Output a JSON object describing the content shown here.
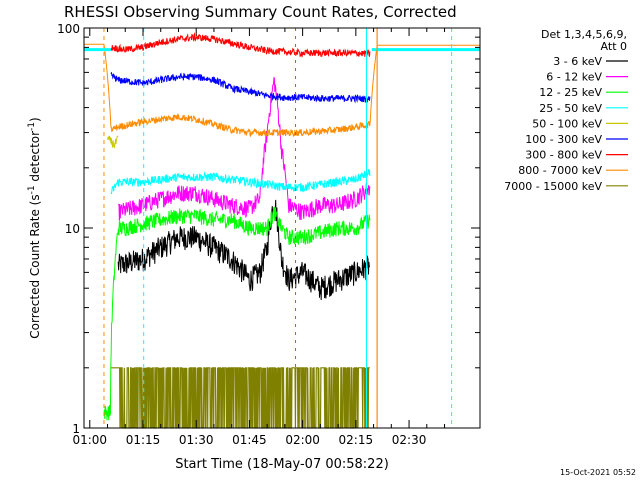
{
  "chart_data": {
    "type": "line",
    "title": "RHESSI Observing Summary Count Rates, Corrected",
    "xlabel": "Start Time (18-May-07 00:58:22)",
    "ylabel_main": "Corrected Count Rate (s",
    "ylabel_sup1": "-1",
    "ylabel_mid": " detector",
    "ylabel_sup2": "-1",
    "ylabel_end": ")",
    "yscale": "log",
    "ylim": [
      1,
      100
    ],
    "xlim_minutes": [
      58.37,
      170
    ],
    "x_ticks": [
      "01:00",
      "01:15",
      "01:30",
      "01:45",
      "02:00",
      "02:15",
      "02:30"
    ],
    "x_tick_minutes": [
      60,
      75,
      90,
      105,
      120,
      135,
      150
    ],
    "y_ticks": [
      "1",
      "10",
      "100"
    ],
    "y_tick_values": [
      1,
      10,
      100
    ],
    "legend": {
      "header1": "Det 1,3,4,5,6,9,",
      "header2": "Att 0",
      "position": "top-right"
    },
    "timestamp": "15-Oct-2021 05:52",
    "data_window_minutes": [
      68,
      139
    ],
    "flare_peak_minutes": 112,
    "series": [
      {
        "name": "3 - 6 keV",
        "color": "#000000",
        "x": [
          68,
          75,
          80,
          85,
          90,
          95,
          100,
          105,
          108,
          110,
          112,
          114,
          116,
          120,
          125,
          130,
          135,
          139
        ],
        "values": [
          6.5,
          7,
          8,
          9,
          9,
          8,
          7,
          5.5,
          6,
          8,
          14,
          7,
          5.5,
          6,
          5,
          5.5,
          6,
          6.5
        ]
      },
      {
        "name": "6 - 12 keV",
        "color": "#ff00ff",
        "x": [
          68,
          75,
          80,
          85,
          90,
          95,
          100,
          105,
          108,
          110,
          112,
          114,
          116,
          120,
          125,
          130,
          135,
          139
        ],
        "values": [
          12,
          13,
          14,
          15,
          15,
          14,
          13,
          12.5,
          14,
          30,
          55,
          25,
          13,
          12,
          13,
          13,
          14,
          16
        ]
      },
      {
        "name": "12 - 25 keV",
        "color": "#00ff00",
        "x": [
          64,
          65.8,
          66,
          68,
          70,
          75,
          80,
          85,
          90,
          95,
          100,
          105,
          110,
          112,
          114,
          116,
          120,
          125,
          130,
          135,
          139
        ],
        "values": [
          1.2,
          1.2,
          2.5,
          10,
          10,
          10.5,
          11,
          11.5,
          11.5,
          11,
          11,
          10,
          10,
          12,
          10,
          9,
          9,
          9.5,
          10,
          10,
          11
        ]
      },
      {
        "name": "25 - 50 keV",
        "color": "#00ffff",
        "x": [
          66,
          68,
          70,
          75,
          80,
          85,
          90,
          95,
          100,
          105,
          110,
          115,
          120,
          125,
          130,
          135,
          139
        ],
        "values": [
          15,
          17,
          17,
          17,
          17.5,
          18,
          18,
          18,
          17.5,
          17,
          16.5,
          16,
          16,
          16.5,
          17,
          17.5,
          19
        ]
      },
      {
        "name": "50 - 100 keV",
        "color": "#c8c800",
        "x": [
          65,
          66,
          67,
          68
        ],
        "values": [
          28,
          27,
          26,
          28
        ]
      },
      {
        "name": "100 - 300 keV",
        "color": "#0000ff",
        "x": [
          66,
          68,
          75,
          80,
          85,
          90,
          95,
          100,
          105,
          110,
          115,
          120,
          125,
          130,
          135,
          139
        ],
        "values": [
          58,
          55,
          53,
          55,
          57,
          57,
          55,
          50,
          48,
          46,
          45,
          45,
          44.5,
          44.5,
          44.5,
          44
        ]
      },
      {
        "name": "300 - 800 keV",
        "color": "#ff0000",
        "x": [
          66,
          70,
          75,
          80,
          85,
          90,
          95,
          100,
          105,
          110,
          115,
          120,
          125,
          130,
          135,
          139
        ],
        "values": [
          80,
          78,
          80,
          85,
          88,
          90,
          88,
          84,
          80,
          77,
          76,
          75,
          75,
          75,
          75,
          74
        ]
      },
      {
        "name": "800 - 7000 keV",
        "color": "#ff8c00",
        "x": [
          58.4,
          62,
          64,
          66,
          68,
          75,
          80,
          85,
          90,
          95,
          100,
          105,
          110,
          115,
          120,
          125,
          130,
          135,
          139,
          141,
          170
        ],
        "values": [
          83,
          83,
          83,
          31,
          32,
          34,
          35,
          36,
          35,
          33,
          31,
          30,
          30,
          30,
          30,
          30.5,
          31,
          32,
          33,
          82,
          82
        ]
      },
      {
        "name": "7000 - 15000 keV",
        "color": "#808000",
        "x": [
          66,
          68,
          75,
          80,
          90,
          95,
          100,
          110,
          120,
          130,
          139
        ],
        "values": [
          2,
          1.3,
          1.4,
          1.6,
          1.6,
          1.3,
          1.4,
          1.3,
          1.3,
          1.4,
          1.5
        ]
      }
    ]
  }
}
